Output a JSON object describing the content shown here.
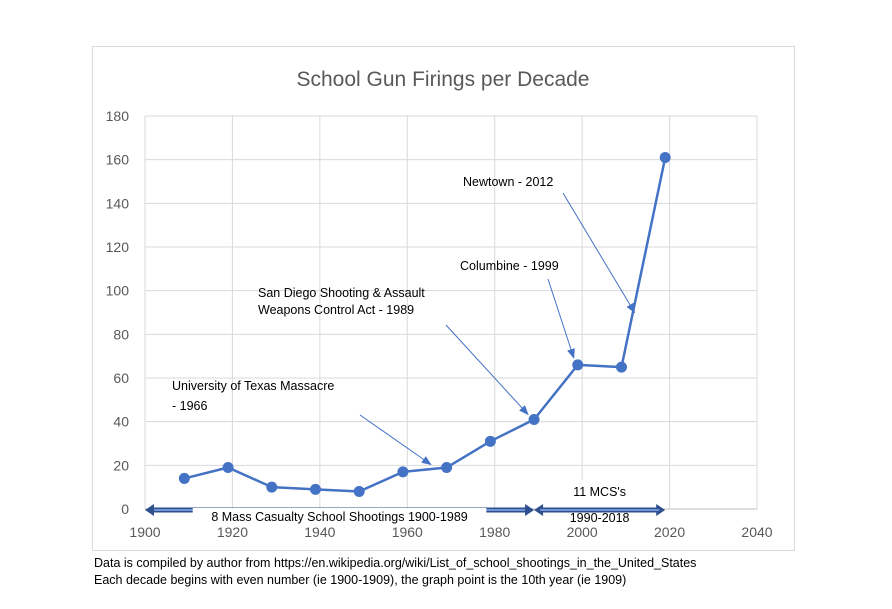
{
  "chart_data": {
    "type": "line",
    "title": "School Gun Firings per Decade",
    "xlabel": "",
    "ylabel": "",
    "xlim": [
      1900,
      2040
    ],
    "ylim": [
      0,
      180
    ],
    "x_ticks": [
      1900,
      1920,
      1940,
      1960,
      1980,
      2000,
      2020,
      2040
    ],
    "y_ticks": [
      0,
      20,
      40,
      60,
      80,
      100,
      120,
      140,
      160,
      180
    ],
    "grid": true,
    "legend": "none",
    "series": [
      {
        "name": "",
        "color": "#4472c4",
        "x": [
          1909,
          1919,
          1929,
          1939,
          1949,
          1959,
          1969,
          1979,
          1989,
          1999,
          2009,
          2019
        ],
        "y": [
          14,
          19,
          10,
          9,
          8,
          17,
          19,
          31,
          41,
          66,
          65,
          161
        ]
      }
    ],
    "annotations": [
      {
        "lines": [
          "University of Texas Massacre",
          "- 1966"
        ],
        "target_x": 1967,
        "target_y": 19
      },
      {
        "lines": [
          "San Diego Shooting & Assault",
          "Weapons Control Act - 1989"
        ],
        "target_x": 1989,
        "target_y": 41
      },
      {
        "lines": [
          "Columbine - 1999"
        ],
        "target_x": 1999,
        "target_y": 66
      },
      {
        "lines": [
          "Newtown - 2012"
        ],
        "target_x": 2012,
        "target_y": 90
      }
    ],
    "range_arrows": [
      {
        "label": [
          "8 Mass Casualty School Shootings 1900-1989"
        ],
        "from": 1900,
        "to": 1989
      },
      {
        "label": [
          "11 MCS's",
          "1990-2018"
        ],
        "from": 1989,
        "to": 2019
      }
    ]
  },
  "notes": [
    "Data is compiled by author from https://en.wikipedia.org/wiki/List_of_school_shootings_in_the_United_States",
    "Each decade begins with even number (ie 1900-1909), the graph point is the 10th year (ie 1909)"
  ]
}
